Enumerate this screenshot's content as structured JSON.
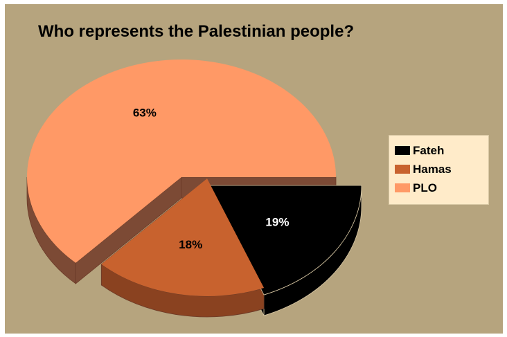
{
  "chart_data": {
    "type": "pie",
    "title": "Who represents the Palestinian people?",
    "three_d": true,
    "exploded": true,
    "legend_position": "right",
    "slices": [
      {
        "label": "Fateh",
        "value": 19,
        "display": "19%",
        "color": "#000000",
        "side_color": "#000000",
        "label_color": "#ffffff"
      },
      {
        "label": "Hamas",
        "value": 18,
        "display": "18%",
        "color": "#c8622e",
        "side_color": "#8a4220",
        "label_color": "#000000"
      },
      {
        "label": "PLO",
        "value": 63,
        "display": "63%",
        "color": "#ff9966",
        "side_color": "#7c4a35",
        "label_color": "#000000"
      }
    ],
    "background_color": "#b6a47e",
    "legend_background": "#ffebc9"
  }
}
